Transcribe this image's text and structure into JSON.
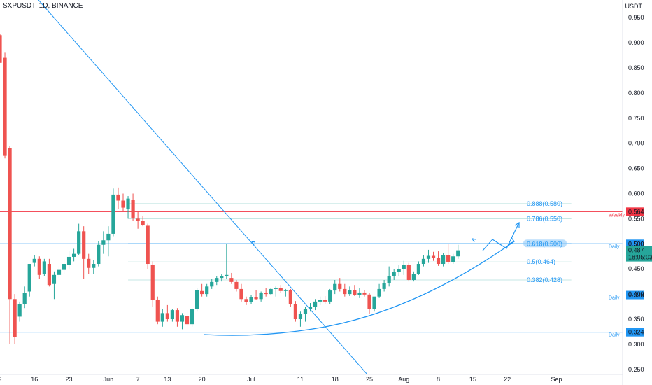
{
  "header": {
    "symbol_label": "SXPUSDT, 1D, BINANCE",
    "currency": "USDT"
  },
  "colors": {
    "up": "#26a69a",
    "down": "#ef5350",
    "line": "#2196f3",
    "red_level": "#f23645",
    "fib": "#b2dfdb"
  },
  "chart_data": {
    "type": "candlestick",
    "title": "SXPUSDT, 1D, BINANCE",
    "ylabel": "USDT",
    "ylim": [
      0.24,
      0.985
    ],
    "y_ticks": [
      0.25,
      0.3,
      0.35,
      0.4,
      0.45,
      0.5,
      0.55,
      0.6,
      0.65,
      0.7,
      0.75,
      0.8,
      0.85,
      0.9,
      0.95
    ],
    "y_tick_labels": [
      "0.250",
      "0.300",
      "0.350",
      "0.400",
      "0.450",
      "0.500",
      "0.550",
      "0.600",
      "0.650",
      "0.700",
      "0.750",
      "0.800",
      "0.850",
      "0.900",
      "0.950"
    ],
    "x_ticks": [
      {
        "label": "9",
        "bar": 0
      },
      {
        "label": "16",
        "bar": 7
      },
      {
        "label": "23",
        "bar": 14
      },
      {
        "label": "Jun",
        "bar": 22
      },
      {
        "label": "7",
        "bar": 28
      },
      {
        "label": "13",
        "bar": 34
      },
      {
        "label": "20",
        "bar": 41
      },
      {
        "label": "Jul",
        "bar": 51
      },
      {
        "label": "11",
        "bar": 61
      },
      {
        "label": "18",
        "bar": 68
      },
      {
        "label": "25",
        "bar": 75
      },
      {
        "label": "Aug",
        "bar": 82
      },
      {
        "label": "8",
        "bar": 89
      },
      {
        "label": "15",
        "bar": 96
      },
      {
        "label": "22",
        "bar": 103
      },
      {
        "label": "Sep",
        "bar": 113
      }
    ],
    "ohlc": [
      [
        0.915,
        0.918,
        0.86,
        0.86
      ],
      [
        0.87,
        0.88,
        0.67,
        0.675
      ],
      [
        0.69,
        0.695,
        0.3,
        0.39
      ],
      [
        0.39,
        0.4,
        0.3,
        0.315
      ],
      [
        0.355,
        0.385,
        0.345,
        0.38
      ],
      [
        0.38,
        0.415,
        0.372,
        0.402
      ],
      [
        0.405,
        0.46,
        0.395,
        0.46
      ],
      [
        0.462,
        0.478,
        0.455,
        0.47
      ],
      [
        0.47,
        0.475,
        0.43,
        0.438
      ],
      [
        0.44,
        0.47,
        0.435,
        0.465
      ],
      [
        0.46,
        0.47,
        0.415,
        0.418
      ],
      [
        0.42,
        0.445,
        0.39,
        0.438
      ],
      [
        0.438,
        0.455,
        0.432,
        0.448
      ],
      [
        0.448,
        0.47,
        0.44,
        0.46
      ],
      [
        0.458,
        0.485,
        0.45,
        0.474
      ],
      [
        0.474,
        0.49,
        0.465,
        0.48
      ],
      [
        0.48,
        0.54,
        0.478,
        0.525
      ],
      [
        0.525,
        0.535,
        0.43,
        0.47
      ],
      [
        0.47,
        0.48,
        0.44,
        0.452
      ],
      [
        0.452,
        0.468,
        0.44,
        0.46
      ],
      [
        0.46,
        0.505,
        0.455,
        0.498
      ],
      [
        0.498,
        0.525,
        0.48,
        0.507
      ],
      [
        0.507,
        0.535,
        0.475,
        0.52
      ],
      [
        0.52,
        0.61,
        0.515,
        0.598
      ],
      [
        0.598,
        0.612,
        0.57,
        0.586
      ],
      [
        0.586,
        0.6,
        0.565,
        0.572
      ],
      [
        0.57,
        0.595,
        0.55,
        0.59
      ],
      [
        0.588,
        0.6,
        0.545,
        0.552
      ],
      [
        0.55,
        0.565,
        0.53,
        0.545
      ],
      [
        0.545,
        0.555,
        0.535,
        0.538
      ],
      [
        0.536,
        0.54,
        0.45,
        0.46
      ],
      [
        0.458,
        0.465,
        0.375,
        0.388
      ],
      [
        0.388,
        0.395,
        0.34,
        0.345
      ],
      [
        0.345,
        0.37,
        0.335,
        0.362
      ],
      [
        0.362,
        0.378,
        0.345,
        0.35
      ],
      [
        0.35,
        0.37,
        0.345,
        0.368
      ],
      [
        0.368,
        0.372,
        0.335,
        0.345
      ],
      [
        0.345,
        0.362,
        0.33,
        0.358
      ],
      [
        0.356,
        0.365,
        0.33,
        0.34
      ],
      [
        0.34,
        0.372,
        0.335,
        0.37
      ],
      [
        0.37,
        0.412,
        0.365,
        0.408
      ],
      [
        0.406,
        0.42,
        0.395,
        0.4
      ],
      [
        0.4,
        0.42,
        0.395,
        0.415
      ],
      [
        0.415,
        0.43,
        0.41,
        0.424
      ],
      [
        0.424,
        0.435,
        0.418,
        0.432
      ],
      [
        0.432,
        0.44,
        0.425,
        0.435
      ],
      [
        0.435,
        0.5,
        0.43,
        0.438
      ],
      [
        0.432,
        0.442,
        0.42,
        0.424
      ],
      [
        0.424,
        0.428,
        0.405,
        0.41
      ],
      [
        0.41,
        0.42,
        0.385,
        0.39
      ],
      [
        0.39,
        0.395,
        0.378,
        0.384
      ],
      [
        0.384,
        0.398,
        0.38,
        0.394
      ],
      [
        0.394,
        0.408,
        0.388,
        0.39
      ],
      [
        0.39,
        0.405,
        0.385,
        0.402
      ],
      [
        0.402,
        0.412,
        0.395,
        0.4
      ],
      [
        0.4,
        0.412,
        0.398,
        0.41
      ],
      [
        0.41,
        0.415,
        0.395,
        0.412
      ],
      [
        0.412,
        0.418,
        0.402,
        0.406
      ],
      [
        0.406,
        0.41,
        0.395,
        0.408
      ],
      [
        0.408,
        0.41,
        0.375,
        0.38
      ],
      [
        0.38,
        0.386,
        0.345,
        0.35
      ],
      [
        0.35,
        0.365,
        0.335,
        0.36
      ],
      [
        0.36,
        0.375,
        0.345,
        0.37
      ],
      [
        0.37,
        0.382,
        0.365,
        0.374
      ],
      [
        0.374,
        0.39,
        0.368,
        0.385
      ],
      [
        0.385,
        0.395,
        0.378,
        0.388
      ],
      [
        0.388,
        0.396,
        0.38,
        0.385
      ],
      [
        0.385,
        0.41,
        0.38,
        0.407
      ],
      [
        0.407,
        0.428,
        0.4,
        0.42
      ],
      [
        0.42,
        0.432,
        0.405,
        0.41
      ],
      [
        0.41,
        0.42,
        0.395,
        0.4
      ],
      [
        0.4,
        0.415,
        0.396,
        0.408
      ],
      [
        0.408,
        0.418,
        0.396,
        0.398
      ],
      [
        0.398,
        0.412,
        0.392,
        0.403
      ],
      [
        0.403,
        0.408,
        0.395,
        0.399
      ],
      [
        0.399,
        0.402,
        0.36,
        0.37
      ],
      [
        0.37,
        0.39,
        0.365,
        0.395
      ],
      [
        0.395,
        0.42,
        0.392,
        0.41
      ],
      [
        0.41,
        0.428,
        0.405,
        0.422
      ],
      [
        0.422,
        0.455,
        0.415,
        0.435
      ],
      [
        0.435,
        0.45,
        0.428,
        0.444
      ],
      [
        0.444,
        0.458,
        0.435,
        0.45
      ],
      [
        0.45,
        0.466,
        0.438,
        0.458
      ],
      [
        0.458,
        0.462,
        0.425,
        0.428
      ],
      [
        0.428,
        0.445,
        0.425,
        0.44
      ],
      [
        0.44,
        0.465,
        0.438,
        0.46
      ],
      [
        0.46,
        0.478,
        0.455,
        0.47
      ],
      [
        0.47,
        0.488,
        0.462,
        0.476
      ],
      [
        0.476,
        0.484,
        0.466,
        0.472
      ],
      [
        0.472,
        0.485,
        0.456,
        0.46
      ],
      [
        0.46,
        0.482,
        0.455,
        0.478
      ],
      [
        0.478,
        0.5,
        0.46,
        0.463
      ],
      [
        0.463,
        0.48,
        0.46,
        0.475
      ],
      [
        0.475,
        0.498,
        0.47,
        0.487
      ]
    ],
    "fib_levels": [
      {
        "ratio": "0.888",
        "price": 0.58,
        "label": "0.888(0.580)"
      },
      {
        "ratio": "0.786",
        "price": 0.55,
        "label": "0.786(0.550)"
      },
      {
        "ratio": "0.618",
        "price": 0.5,
        "label": "0.618(0.500)"
      },
      {
        "ratio": "0.5",
        "price": 0.464,
        "label": "0.5(0.464)"
      },
      {
        "ratio": "0.382",
        "price": 0.428,
        "label": "0.382(0.428)"
      }
    ],
    "horizontal_levels": [
      {
        "price": 0.564,
        "label": "0.564",
        "tag": "Weekly",
        "color": "#f23645"
      },
      {
        "price": 0.5,
        "label": "0.500",
        "tag": "Daily",
        "color": "#2196f3"
      },
      {
        "price": 0.398,
        "label": "0.398",
        "tag": "Daily",
        "color": "#2196f3"
      },
      {
        "price": 0.324,
        "label": "0.324",
        "tag": "Daily",
        "color": "#2196f3"
      }
    ],
    "current_price": {
      "value": "0.487",
      "countdown": "18:05:03"
    }
  }
}
